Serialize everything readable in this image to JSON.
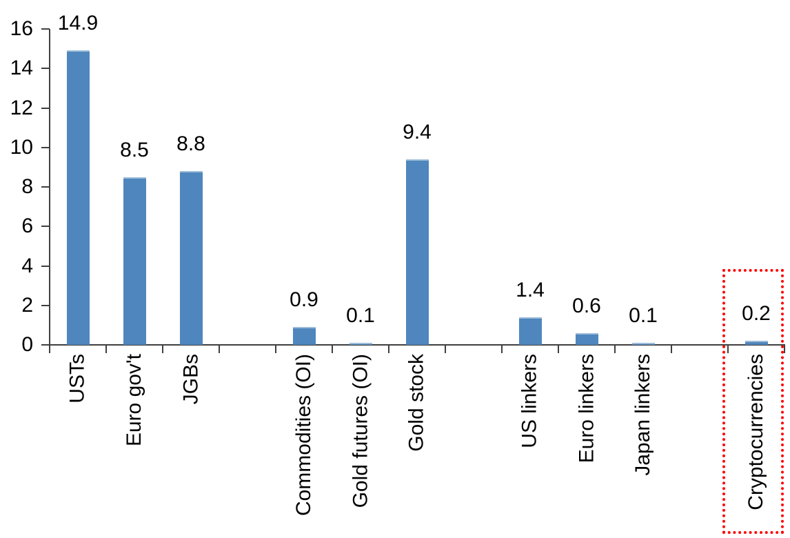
{
  "chart_data": {
    "type": "bar",
    "title": "",
    "xlabel": "",
    "ylabel": "",
    "categories": [
      "USTs",
      "Euro gov't",
      "JGBs",
      "Commodities (OI)",
      "Gold futures (OI)",
      "Gold stock",
      "US linkers",
      "Euro linkers",
      "Japan linkers",
      "Cryptocurrencies"
    ],
    "values": [
      14.9,
      8.5,
      8.8,
      0.9,
      0.1,
      9.4,
      1.4,
      0.6,
      0.1,
      0.2
    ],
    "data_labels": [
      "14.9",
      "8.5",
      "8.8",
      "0.9",
      "0.1",
      "9.4",
      "1.4",
      "0.6",
      "0.1",
      "0.2"
    ],
    "slots": [
      0,
      1,
      2,
      4,
      5,
      6,
      8,
      9,
      10,
      12
    ],
    "slot_count": 13,
    "groups": [
      [
        "USTs",
        "Euro gov't",
        "JGBs"
      ],
      [
        "Commodities (OI)",
        "Gold futures (OI)",
        "Gold stock"
      ],
      [
        "US linkers",
        "Euro linkers",
        "Japan linkers"
      ],
      [
        "Cryptocurrencies"
      ]
    ],
    "ylim": [
      0,
      16
    ],
    "yticks": [
      0,
      2,
      4,
      6,
      8,
      10,
      12,
      14,
      16
    ],
    "grid": "off",
    "legend": "none",
    "bar_color": "#4f86bd",
    "axis_color": "#3f3f3f",
    "text_color": "#000000",
    "highlight": {
      "category": "Cryptocurrencies",
      "border_color": "#ff0000",
      "border_style": "dotted"
    }
  }
}
